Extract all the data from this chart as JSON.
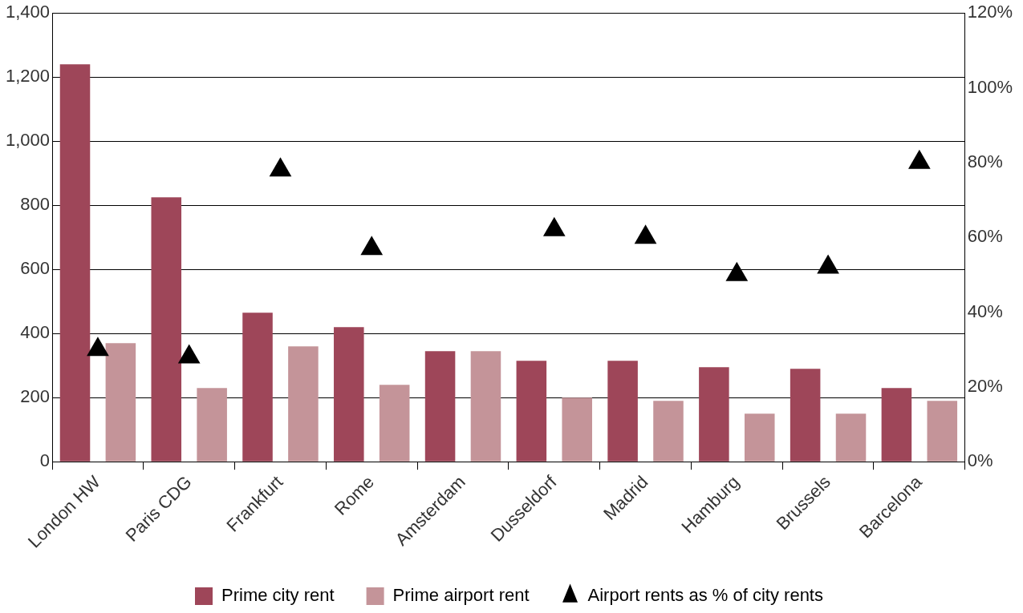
{
  "chart_data": {
    "type": "bar",
    "categories": [
      "London HW",
      "Paris CDG",
      "Frankfurt",
      "Rome",
      "Amsterdam",
      "Dusseldorf",
      "Madrid",
      "Hamburg",
      "Brussels",
      "Barcelona"
    ],
    "series": [
      {
        "name": "Prime city rent",
        "color": "#9e4659",
        "values": [
          1240,
          825,
          465,
          420,
          345,
          315,
          315,
          295,
          290,
          230
        ]
      },
      {
        "name": "Prime airport rent",
        "color": "#c49499",
        "values": [
          370,
          230,
          360,
          240,
          345,
          200,
          190,
          150,
          150,
          190
        ]
      },
      {
        "name": "Airport rents as % of city rents",
        "type": "scatter",
        "axis": "y2",
        "color": "#000000",
        "marker": "triangle",
        "values": [
          30,
          28,
          78,
          57,
          null,
          62,
          60,
          50,
          52,
          80
        ]
      }
    ],
    "ylim": [
      0,
      1400
    ],
    "yticks": [
      0,
      200,
      400,
      600,
      800,
      {
        "value": 1000,
        "label": "1,000"
      },
      {
        "value": 1200,
        "label": "1,200"
      },
      {
        "value": 1400,
        "label": "1,400"
      }
    ],
    "y2lim": [
      0,
      120
    ],
    "y2ticks": [
      {
        "value": 0,
        "label": "0%"
      },
      {
        "value": 20,
        "label": "20%"
      },
      {
        "value": 40,
        "label": "40%"
      },
      {
        "value": 60,
        "label": "60%"
      },
      {
        "value": 80,
        "label": "80%"
      },
      {
        "value": 100,
        "label": "100%"
      },
      {
        "value": 120,
        "label": "120%"
      }
    ],
    "grid": "y",
    "legend": "bottom"
  }
}
